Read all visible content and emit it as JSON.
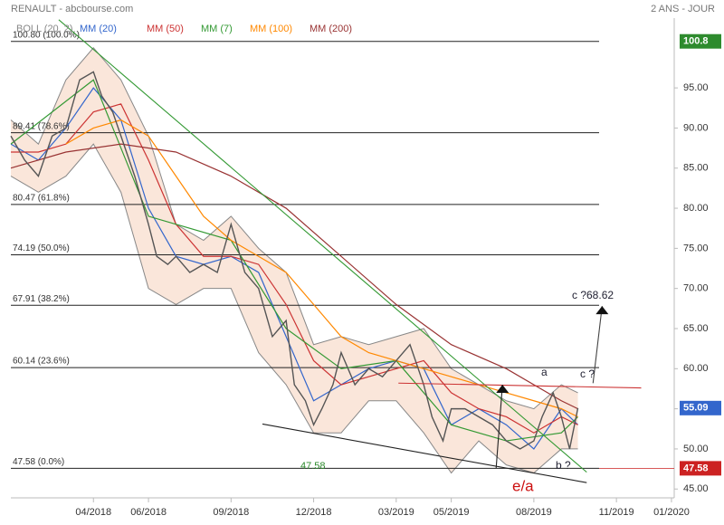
{
  "chart_data": {
    "type": "stock",
    "title": "RENAULT - abcbourse.com",
    "subtitle": "2 ANS - JOUR",
    "xlim": [
      0,
      24.1
    ],
    "ylim": [
      43.9,
      103.7
    ],
    "xticks": [
      {
        "value": 3,
        "label": "04/2018"
      },
      {
        "value": 5,
        "label": "06/2018"
      },
      {
        "value": 8,
        "label": "09/2018"
      },
      {
        "value": 11,
        "label": "12/2018"
      },
      {
        "value": 14,
        "label": "03/2019"
      },
      {
        "value": 16,
        "label": "05/2019"
      },
      {
        "value": 19,
        "label": "08/2019"
      },
      {
        "value": 22,
        "label": "11/2019"
      },
      {
        "value": 24,
        "label": "01/2020"
      }
    ],
    "yticks": [
      {
        "value": 45,
        "label": "45.00"
      },
      {
        "value": 50,
        "label": "50.00"
      },
      {
        "value": 55,
        "label": "55.00"
      },
      {
        "value": 60,
        "label": "60.00"
      },
      {
        "value": 65,
        "label": "65.00"
      },
      {
        "value": 70,
        "label": "70.00"
      },
      {
        "value": 75,
        "label": "75.00"
      },
      {
        "value": 80,
        "label": "80.00"
      },
      {
        "value": 85,
        "label": "85.00"
      },
      {
        "value": 90,
        "label": "90.00"
      },
      {
        "value": 95,
        "label": "95.00"
      }
    ],
    "price": {
      "color": "#555555",
      "x": [
        0,
        0.5,
        1,
        1.5,
        2,
        2.5,
        3,
        3.3,
        3.7,
        4,
        4.5,
        5,
        5.3,
        5.7,
        6,
        6.5,
        7,
        7.5,
        8,
        8.5,
        9,
        9.5,
        10,
        10.3,
        10.7,
        11,
        11.3,
        11.7,
        12,
        12.5,
        13,
        13.5,
        14,
        14.5,
        15,
        15.3,
        15.7,
        16,
        16.5,
        17,
        17.5,
        18,
        18.5,
        19,
        19.3,
        19.7,
        20,
        20.3,
        20.6
      ],
      "values": [
        89,
        86,
        84,
        89,
        90,
        96,
        97,
        94,
        92,
        89,
        84,
        78,
        74,
        73,
        74,
        72,
        73,
        72,
        78,
        72,
        70,
        64,
        66,
        58,
        56,
        53,
        55,
        58,
        62,
        58,
        60,
        59,
        61,
        63,
        58,
        54,
        51,
        55,
        55,
        54,
        53,
        51,
        50,
        51,
        54,
        57,
        54,
        50,
        55.09
      ]
    },
    "boll": {
      "name": "BOLL (20, 2)",
      "color": "#888888",
      "x": [
        0,
        1,
        2,
        3,
        4,
        5,
        6,
        7,
        8,
        9,
        10,
        11,
        12,
        13,
        14,
        15,
        16,
        17,
        18,
        19,
        20,
        20.6
      ],
      "upper": [
        91,
        88,
        96,
        100,
        96,
        89,
        78,
        76,
        79,
        75,
        72,
        63,
        64,
        63,
        64,
        65,
        60,
        58,
        56,
        55,
        58,
        57
      ],
      "lower": [
        84,
        82,
        84,
        88,
        82,
        70,
        68,
        70,
        70,
        62,
        58,
        52,
        52,
        56,
        56,
        52,
        47,
        51,
        48,
        47,
        50,
        50
      ]
    },
    "series": [
      {
        "name": "MM (20)",
        "color": "#3366cc",
        "x": [
          0,
          1,
          2,
          3,
          4,
          5,
          6,
          7,
          8,
          9,
          10,
          11,
          12,
          13,
          14,
          15,
          16,
          17,
          18,
          19,
          20,
          20.6
        ],
        "values": [
          88,
          86,
          90,
          95,
          91,
          80,
          74,
          73,
          74,
          72,
          64,
          56,
          58,
          60,
          61,
          60,
          53,
          55,
          53,
          50,
          55,
          53
        ]
      },
      {
        "name": "MM (50)",
        "color": "#cc3333",
        "x": [
          0,
          1,
          2,
          3,
          4,
          5,
          6,
          7,
          8,
          9,
          10,
          11,
          12,
          13,
          14,
          15,
          16,
          17,
          18,
          19,
          20,
          20.6
        ],
        "values": [
          87,
          87,
          88,
          92,
          93,
          86,
          78,
          74,
          74,
          73,
          68,
          61,
          58,
          59,
          60,
          61,
          57,
          55,
          54,
          52,
          54,
          53
        ]
      },
      {
        "name": "MM (7)",
        "color": "#339933",
        "x": [
          0,
          3,
          5,
          8,
          10,
          12,
          14,
          16,
          18,
          20,
          20.6
        ],
        "values": [
          88,
          96,
          79,
          76,
          65,
          60,
          61,
          53,
          51,
          52,
          54
        ]
      },
      {
        "name": "MM (100)",
        "color": "#ff8800",
        "x": [
          2,
          3,
          4,
          5,
          6,
          7,
          8,
          9,
          10,
          11,
          12,
          13,
          14,
          15,
          16,
          17,
          18,
          19,
          20,
          20.6
        ],
        "values": [
          88,
          90,
          91,
          89,
          84,
          79,
          76,
          74,
          72,
          68,
          64,
          62,
          61,
          60,
          59,
          58,
          57,
          56,
          55,
          54
        ]
      },
      {
        "name": "MM (200)",
        "color": "#993333",
        "x": [
          0,
          2,
          4,
          6,
          8,
          10,
          12,
          14,
          16,
          18,
          20,
          20.6
        ],
        "values": [
          85,
          87,
          88,
          87,
          84,
          80,
          74,
          68,
          63,
          60,
          56,
          55
        ]
      }
    ],
    "levels": [
      {
        "value": 100.8,
        "label": "100.80 (100.0%)"
      },
      {
        "value": 89.41,
        "label": "89.41 (78.6%)"
      },
      {
        "value": 80.47,
        "label": "80.47 (61.8%)"
      },
      {
        "value": 74.19,
        "label": "74.19 (50.0%)"
      },
      {
        "value": 67.91,
        "label": "67.91 (38.2%)"
      },
      {
        "value": 60.14,
        "label": "60.14 (23.6%)"
      },
      {
        "value": 47.58,
        "label": "47.58 (0.0%)"
      }
    ],
    "trendlines": [
      {
        "color": "#339933",
        "x": [
          1.74,
          20.92
        ],
        "y": [
          103.5,
          47.1
        ]
      },
      {
        "color": "#222222",
        "x": [
          9.14,
          20.92
        ],
        "y": [
          53.1,
          45.8
        ]
      },
      {
        "color": "#cc3333",
        "x": [
          14.08,
          22.9
        ],
        "y": [
          58.2,
          57.6
        ]
      },
      {
        "color": "#222222",
        "x": [
          17.63,
          17.86
        ],
        "y": [
          47.6,
          58.0
        ]
      },
      {
        "color": "#444444",
        "x": [
          21.15,
          21.48
        ],
        "y": [
          58.2,
          67.8
        ]
      }
    ],
    "tags": [
      {
        "value": 100.8,
        "color": "#2e8b2e"
      },
      {
        "value": 55.09,
        "color": "#3366cc"
      },
      {
        "value": 47.58,
        "color": "#cc2222"
      }
    ],
    "annotations": [
      "c ?68.62",
      "a",
      "c ?",
      "b ?",
      "e/a",
      "47.58"
    ]
  }
}
